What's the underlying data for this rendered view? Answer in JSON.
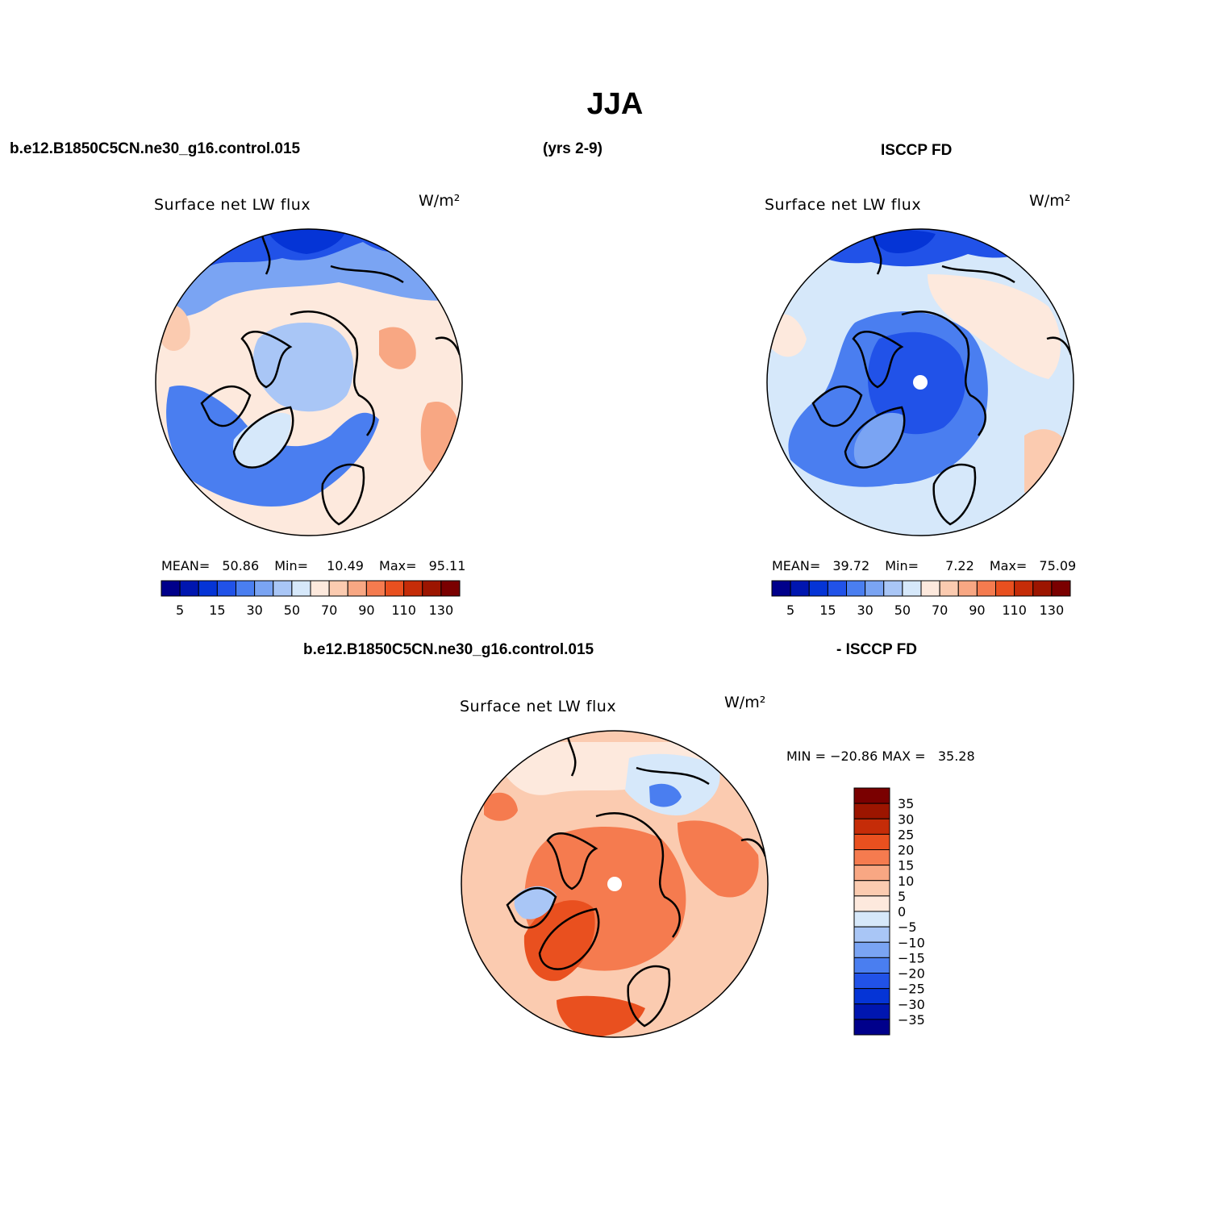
{
  "title": "JJA",
  "case_name": "b.e12.B1850C5CN.ne30_g16.control.015",
  "years": "(yrs 2-9)",
  "obs_name": "ISCCP FD",
  "diff_case_name": "b.e12.B1850C5CN.ne30_g16.control.015",
  "diff_obs_name": "- ISCCP FD",
  "variable": "Surface net LW flux",
  "units": "W/m²",
  "colors": {
    "levels": [
      "#00008b",
      "#0016b0",
      "#0534d6",
      "#2152e8",
      "#4a7ef0",
      "#7aa4f3",
      "#a9c6f6",
      "#d6e8fa",
      "#fde9dd",
      "#fbcbb0",
      "#f8a783",
      "#f57b4f",
      "#e9501f",
      "#c52c08",
      "#9c1500",
      "#7a0000"
    ],
    "land": "#000000"
  },
  "chart_data": [
    {
      "type": "heatmap",
      "panel": "model",
      "title": "Surface net LW flux",
      "units": "W/m²",
      "stats": {
        "mean_label": "MEAN=",
        "mean": "50.86",
        "min_label": "Min=",
        "min": "10.49",
        "max_label": "Max=",
        "max": "95.11"
      },
      "colorbar_ticks": [
        "5",
        "15",
        "30",
        "50",
        "70",
        "90",
        "110",
        "130"
      ],
      "value_range": [
        10.49,
        95.11
      ]
    },
    {
      "type": "heatmap",
      "panel": "obs",
      "title": "Surface net LW flux",
      "units": "W/m²",
      "stats": {
        "mean_label": "MEAN=",
        "mean": "39.72",
        "min_label": "Min=",
        "min": "7.22",
        "max_label": "Max=",
        "max": "75.09"
      },
      "colorbar_ticks": [
        "5",
        "15",
        "30",
        "50",
        "70",
        "90",
        "110",
        "130"
      ],
      "value_range": [
        7.22,
        75.09
      ]
    },
    {
      "type": "heatmap",
      "panel": "difference",
      "title": "Surface net LW flux",
      "units": "W/m²",
      "stats_label": "MIN = −20.86 MAX =   35.28",
      "min": -20.86,
      "max": 35.28,
      "colorbar_ticks": [
        "35",
        "30",
        "25",
        "20",
        "15",
        "10",
        "5",
        "0",
        "−5",
        "−10",
        "−15",
        "−20",
        "−25",
        "−30",
        "−35"
      ]
    }
  ]
}
